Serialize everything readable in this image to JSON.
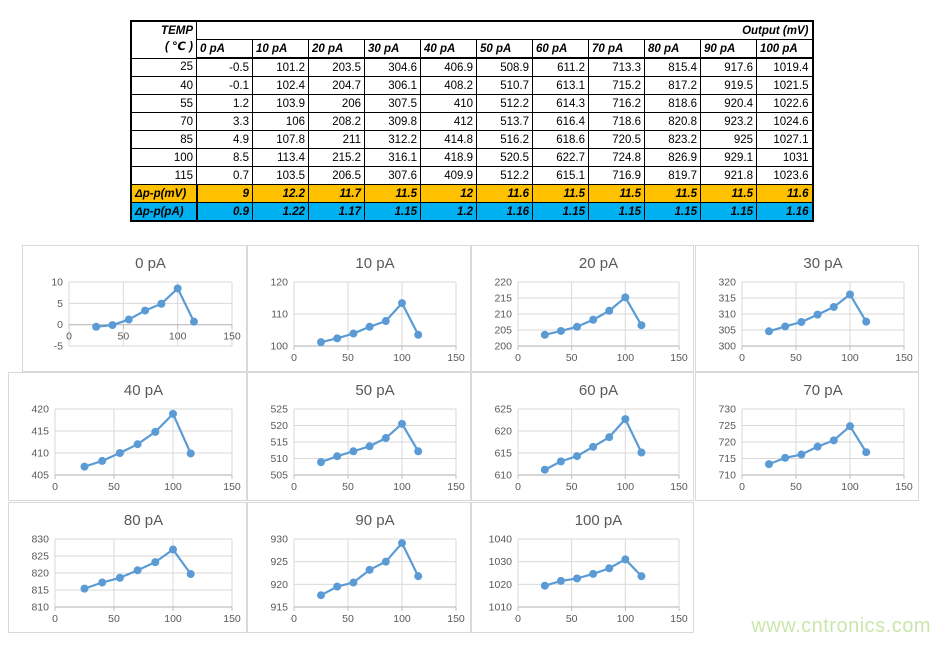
{
  "table": {
    "temp_header_line1": "TEMP",
    "temp_header_line2": "( ℃ )",
    "output_header": "Output (mV)",
    "current_headers": [
      "0 pA",
      "10 pA",
      "20 pA",
      "30 pA",
      "40 pA",
      "50 pA",
      "60 pA",
      "70 pA",
      "80 pA",
      "90 pA",
      "100 pA"
    ],
    "rows": [
      {
        "temp": "25",
        "values": [
          "-0.5",
          "101.2",
          "203.5",
          "304.6",
          "406.9",
          "508.9",
          "611.2",
          "713.3",
          "815.4",
          "917.6",
          "1019.4"
        ]
      },
      {
        "temp": "40",
        "values": [
          "-0.1",
          "102.4",
          "204.7",
          "306.1",
          "408.2",
          "510.7",
          "613.1",
          "715.2",
          "817.2",
          "919.5",
          "1021.5"
        ]
      },
      {
        "temp": "55",
        "values": [
          "1.2",
          "103.9",
          "206",
          "307.5",
          "410",
          "512.2",
          "614.3",
          "716.2",
          "818.6",
          "920.4",
          "1022.6"
        ]
      },
      {
        "temp": "70",
        "values": [
          "3.3",
          "106",
          "208.2",
          "309.8",
          "412",
          "513.7",
          "616.4",
          "718.6",
          "820.8",
          "923.2",
          "1024.6"
        ]
      },
      {
        "temp": "85",
        "values": [
          "4.9",
          "107.8",
          "211",
          "312.2",
          "414.8",
          "516.2",
          "618.6",
          "720.5",
          "823.2",
          "925",
          "1027.1"
        ]
      },
      {
        "temp": "100",
        "values": [
          "8.5",
          "113.4",
          "215.2",
          "316.1",
          "418.9",
          "520.5",
          "622.7",
          "724.8",
          "826.9",
          "929.1",
          "1031"
        ]
      },
      {
        "temp": "115",
        "values": [
          "0.7",
          "103.5",
          "206.5",
          "307.6",
          "409.9",
          "512.2",
          "615.1",
          "716.9",
          "819.7",
          "921.8",
          "1023.6"
        ]
      }
    ],
    "delta_rows": [
      {
        "label": "Δp-p(mV)",
        "bg": "#FFC000",
        "values": [
          "9",
          "12.2",
          "11.7",
          "11.5",
          "12",
          "11.6",
          "11.5",
          "11.5",
          "11.5",
          "11.5",
          "11.6"
        ]
      },
      {
        "label": "Δp-p(pA)",
        "bg": "#00B0F0",
        "values": [
          "0.9",
          "1.22",
          "1.17",
          "1.15",
          "1.2",
          "1.16",
          "1.15",
          "1.15",
          "1.15",
          "1.15",
          "1.16"
        ]
      }
    ]
  },
  "chart_data": [
    {
      "type": "line",
      "title": "0 pA",
      "x": [
        25,
        40,
        55,
        70,
        85,
        100,
        115
      ],
      "values": [
        -0.5,
        -0.1,
        1.2,
        3.3,
        4.9,
        8.5,
        0.7
      ],
      "xlim": [
        0,
        150
      ],
      "xticks": [
        0,
        50,
        100,
        150
      ],
      "ylim": [
        -5,
        10
      ],
      "yticks": [
        -5,
        0,
        5,
        10
      ],
      "axis_cross": 0,
      "xlabel": "",
      "ylabel": ""
    },
    {
      "type": "line",
      "title": "10 pA",
      "x": [
        25,
        40,
        55,
        70,
        85,
        100,
        115
      ],
      "values": [
        101.2,
        102.4,
        103.9,
        106,
        107.8,
        113.4,
        103.5
      ],
      "xlim": [
        0,
        150
      ],
      "xticks": [
        0,
        50,
        100,
        150
      ],
      "ylim": [
        100,
        120
      ],
      "yticks": [
        100,
        110,
        120
      ],
      "axis_cross": 100,
      "xlabel": "",
      "ylabel": ""
    },
    {
      "type": "line",
      "title": "20 pA",
      "x": [
        25,
        40,
        55,
        70,
        85,
        100,
        115
      ],
      "values": [
        203.5,
        204.7,
        206,
        208.2,
        211,
        215.2,
        206.5
      ],
      "xlim": [
        0,
        150
      ],
      "xticks": [
        0,
        50,
        100,
        150
      ],
      "ylim": [
        200,
        220
      ],
      "yticks": [
        200,
        205,
        210,
        215,
        220
      ],
      "axis_cross": 200,
      "xlabel": "",
      "ylabel": ""
    },
    {
      "type": "line",
      "title": "30 pA",
      "x": [
        25,
        40,
        55,
        70,
        85,
        100,
        115
      ],
      "values": [
        304.6,
        306.1,
        307.5,
        309.8,
        312.2,
        316.1,
        307.6
      ],
      "xlim": [
        0,
        150
      ],
      "xticks": [
        0,
        50,
        100,
        150
      ],
      "ylim": [
        300,
        320
      ],
      "yticks": [
        300,
        305,
        310,
        315,
        320
      ],
      "axis_cross": 300,
      "xlabel": "",
      "ylabel": ""
    },
    {
      "type": "line",
      "title": "40 pA",
      "x": [
        25,
        40,
        55,
        70,
        85,
        100,
        115
      ],
      "values": [
        406.9,
        408.2,
        410,
        412,
        414.8,
        418.9,
        409.9
      ],
      "xlim": [
        0,
        150
      ],
      "xticks": [
        0,
        50,
        100,
        150
      ],
      "ylim": [
        405,
        420
      ],
      "yticks": [
        405,
        410,
        415,
        420
      ],
      "axis_cross": 405,
      "xlabel": "",
      "ylabel": ""
    },
    {
      "type": "line",
      "title": "50 pA",
      "x": [
        25,
        40,
        55,
        70,
        85,
        100,
        115
      ],
      "values": [
        508.9,
        510.7,
        512.2,
        513.7,
        516.2,
        520.5,
        512.2
      ],
      "xlim": [
        0,
        150
      ],
      "xticks": [
        0,
        50,
        100,
        150
      ],
      "ylim": [
        505,
        525
      ],
      "yticks": [
        505,
        510,
        515,
        520,
        525
      ],
      "axis_cross": 505,
      "xlabel": "",
      "ylabel": ""
    },
    {
      "type": "line",
      "title": "60 pA",
      "x": [
        25,
        40,
        55,
        70,
        85,
        100,
        115
      ],
      "values": [
        611.2,
        613.1,
        614.3,
        616.4,
        618.6,
        622.7,
        615.1
      ],
      "xlim": [
        0,
        150
      ],
      "xticks": [
        0,
        50,
        100,
        150
      ],
      "ylim": [
        610,
        625
      ],
      "yticks": [
        610,
        615,
        620,
        625
      ],
      "axis_cross": 610,
      "xlabel": "",
      "ylabel": ""
    },
    {
      "type": "line",
      "title": "70 pA",
      "x": [
        25,
        40,
        55,
        70,
        85,
        100,
        115
      ],
      "values": [
        713.3,
        715.2,
        716.2,
        718.6,
        720.5,
        724.8,
        716.9
      ],
      "xlim": [
        0,
        150
      ],
      "xticks": [
        0,
        50,
        100,
        150
      ],
      "ylim": [
        710,
        730
      ],
      "yticks": [
        710,
        715,
        720,
        725,
        730
      ],
      "axis_cross": 710,
      "xlabel": "",
      "ylabel": ""
    },
    {
      "type": "line",
      "title": "80 pA",
      "x": [
        25,
        40,
        55,
        70,
        85,
        100,
        115
      ],
      "values": [
        815.4,
        817.2,
        818.6,
        820.8,
        823.2,
        826.9,
        819.7
      ],
      "xlim": [
        0,
        150
      ],
      "xticks": [
        0,
        50,
        100,
        150
      ],
      "ylim": [
        810,
        830
      ],
      "yticks": [
        810,
        815,
        820,
        825,
        830
      ],
      "axis_cross": 810,
      "xlabel": "",
      "ylabel": ""
    },
    {
      "type": "line",
      "title": "90 pA",
      "x": [
        25,
        40,
        55,
        70,
        85,
        100,
        115
      ],
      "values": [
        917.6,
        919.5,
        920.4,
        923.2,
        925,
        929.1,
        921.8
      ],
      "xlim": [
        0,
        150
      ],
      "xticks": [
        0,
        50,
        100,
        150
      ],
      "ylim": [
        915,
        930
      ],
      "yticks": [
        915,
        920,
        925,
        930
      ],
      "axis_cross": 915,
      "xlabel": "",
      "ylabel": ""
    },
    {
      "type": "line",
      "title": "100 pA",
      "x": [
        25,
        40,
        55,
        70,
        85,
        100,
        115
      ],
      "values": [
        1019.4,
        1021.5,
        1022.6,
        1024.6,
        1027.1,
        1031,
        1023.6
      ],
      "xlim": [
        0,
        150
      ],
      "xticks": [
        0,
        50,
        100,
        150
      ],
      "ylim": [
        1010,
        1040
      ],
      "yticks": [
        1010,
        1020,
        1030,
        1040
      ],
      "axis_cross": 1010,
      "xlabel": "",
      "ylabel": ""
    }
  ],
  "watermark": "www.cntronics.com",
  "colors": {
    "series_line": "#5B9BD5",
    "gridline": "#D9D9D9",
    "axis_line": "#BFBFBF",
    "chart_text": "#595959",
    "delta_mv_bg": "#FFC000",
    "delta_pa_bg": "#00B0F0",
    "watermark": "#cbe6ab"
  }
}
